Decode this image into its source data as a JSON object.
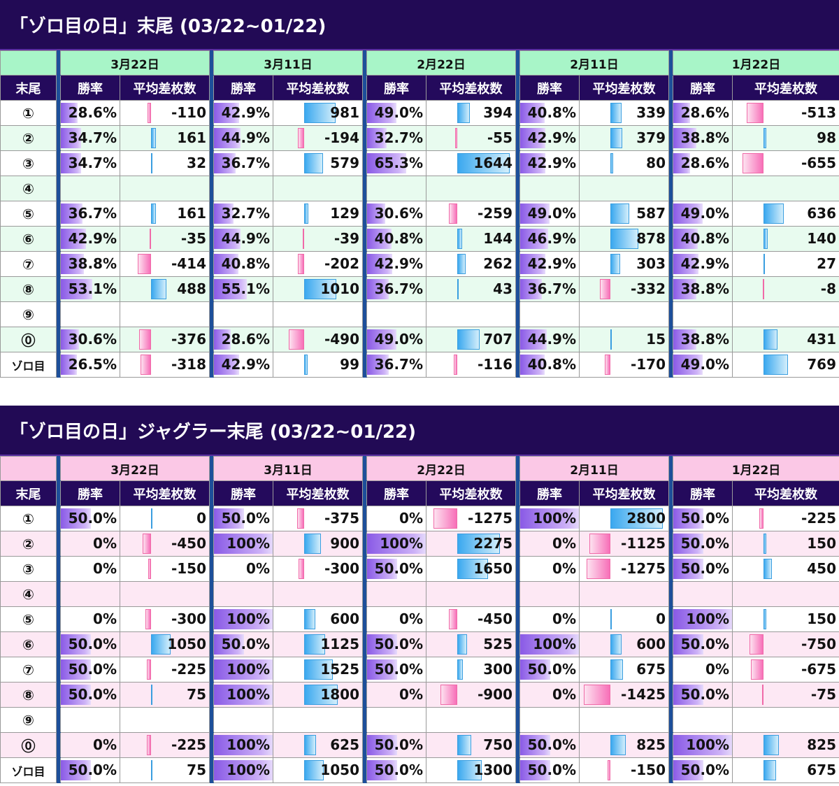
{
  "dates": [
    "3月22日",
    "3月11日",
    "2月22日",
    "2月11日",
    "1月22日"
  ],
  "col_labels": {
    "row_header": "末尾",
    "rate": "勝率",
    "avg": "平均差枚数"
  },
  "colors": {
    "s1_date_bg": "#a8f5c8",
    "s1_alt": "#e8fbef",
    "s2_date_bg": "#fbc8e6",
    "s2_alt": "#fde8f4"
  },
  "sections": [
    {
      "title": "「ゾロ目の日」末尾 (03/22~01/22)",
      "rows": [
        {
          "label": "①",
          "cells": [
            [
              "28.6%",
              "-110"
            ],
            [
              "42.9%",
              "981"
            ],
            [
              "49.0%",
              "394"
            ],
            [
              "40.8%",
              "339"
            ],
            [
              "28.6%",
              "-513"
            ]
          ]
        },
        {
          "label": "②",
          "cells": [
            [
              "34.7%",
              "161"
            ],
            [
              "44.9%",
              "-194"
            ],
            [
              "32.7%",
              "-55"
            ],
            [
              "42.9%",
              "379"
            ],
            [
              "38.8%",
              "98"
            ]
          ]
        },
        {
          "label": "③",
          "cells": [
            [
              "34.7%",
              "32"
            ],
            [
              "36.7%",
              "579"
            ],
            [
              "65.3%",
              "1644"
            ],
            [
              "42.9%",
              "80"
            ],
            [
              "28.6%",
              "-655"
            ]
          ]
        },
        {
          "label": "④",
          "cells": [
            [
              "",
              ""
            ],
            [
              "",
              ""
            ],
            [
              "",
              ""
            ],
            [
              "",
              ""
            ],
            [
              "",
              ""
            ]
          ]
        },
        {
          "label": "⑤",
          "cells": [
            [
              "36.7%",
              "161"
            ],
            [
              "32.7%",
              "129"
            ],
            [
              "30.6%",
              "-259"
            ],
            [
              "49.0%",
              "587"
            ],
            [
              "49.0%",
              "636"
            ]
          ]
        },
        {
          "label": "⑥",
          "cells": [
            [
              "42.9%",
              "-35"
            ],
            [
              "44.9%",
              "-39"
            ],
            [
              "40.8%",
              "144"
            ],
            [
              "46.9%",
              "878"
            ],
            [
              "40.8%",
              "140"
            ]
          ]
        },
        {
          "label": "⑦",
          "cells": [
            [
              "38.8%",
              "-414"
            ],
            [
              "40.8%",
              "-202"
            ],
            [
              "42.9%",
              "262"
            ],
            [
              "42.9%",
              "303"
            ],
            [
              "42.9%",
              "27"
            ]
          ]
        },
        {
          "label": "⑧",
          "cells": [
            [
              "53.1%",
              "488"
            ],
            [
              "55.1%",
              "1010"
            ],
            [
              "36.7%",
              "43"
            ],
            [
              "36.7%",
              "-332"
            ],
            [
              "38.8%",
              "-8"
            ]
          ]
        },
        {
          "label": "⑨",
          "cells": [
            [
              "",
              ""
            ],
            [
              "",
              ""
            ],
            [
              "",
              ""
            ],
            [
              "",
              ""
            ],
            [
              "",
              ""
            ]
          ]
        },
        {
          "label": "⓪",
          "cells": [
            [
              "30.6%",
              "-376"
            ],
            [
              "28.6%",
              "-490"
            ],
            [
              "49.0%",
              "707"
            ],
            [
              "44.9%",
              "15"
            ],
            [
              "38.8%",
              "431"
            ]
          ]
        },
        {
          "label": "ゾロ目",
          "cells": [
            [
              "26.5%",
              "-318"
            ],
            [
              "42.9%",
              "99"
            ],
            [
              "36.7%",
              "-116"
            ],
            [
              "40.8%",
              "-170"
            ],
            [
              "49.0%",
              "769"
            ]
          ]
        }
      ]
    },
    {
      "title": "「ゾロ目の日」ジャグラー末尾 (03/22~01/22)",
      "rows": [
        {
          "label": "①",
          "cells": [
            [
              "50.0%",
              "0"
            ],
            [
              "50.0%",
              "-375"
            ],
            [
              "0%",
              "-1275"
            ],
            [
              "100%",
              "2800"
            ],
            [
              "50.0%",
              "-225"
            ]
          ]
        },
        {
          "label": "②",
          "cells": [
            [
              "0%",
              "-450"
            ],
            [
              "100%",
              "900"
            ],
            [
              "100%",
              "2275"
            ],
            [
              "0%",
              "-1125"
            ],
            [
              "50.0%",
              "150"
            ]
          ]
        },
        {
          "label": "③",
          "cells": [
            [
              "0%",
              "-150"
            ],
            [
              "0%",
              "-300"
            ],
            [
              "50.0%",
              "1650"
            ],
            [
              "0%",
              "-1275"
            ],
            [
              "50.0%",
              "450"
            ]
          ]
        },
        {
          "label": "④",
          "cells": [
            [
              "",
              ""
            ],
            [
              "",
              ""
            ],
            [
              "",
              ""
            ],
            [
              "",
              ""
            ],
            [
              "",
              ""
            ]
          ]
        },
        {
          "label": "⑤",
          "cells": [
            [
              "0%",
              "-300"
            ],
            [
              "100%",
              "600"
            ],
            [
              "0%",
              "-450"
            ],
            [
              "0%",
              "0"
            ],
            [
              "100%",
              "150"
            ]
          ]
        },
        {
          "label": "⑥",
          "cells": [
            [
              "50.0%",
              "1050"
            ],
            [
              "50.0%",
              "1125"
            ],
            [
              "50.0%",
              "525"
            ],
            [
              "100%",
              "600"
            ],
            [
              "50.0%",
              "-750"
            ]
          ]
        },
        {
          "label": "⑦",
          "cells": [
            [
              "50.0%",
              "-225"
            ],
            [
              "100%",
              "1525"
            ],
            [
              "50.0%",
              "300"
            ],
            [
              "50.0%",
              "675"
            ],
            [
              "0%",
              "-675"
            ]
          ]
        },
        {
          "label": "⑧",
          "cells": [
            [
              "50.0%",
              "75"
            ],
            [
              "100%",
              "1800"
            ],
            [
              "0%",
              "-900"
            ],
            [
              "0%",
              "-1425"
            ],
            [
              "50.0%",
              "-75"
            ]
          ]
        },
        {
          "label": "⑨",
          "cells": [
            [
              "",
              ""
            ],
            [
              "",
              ""
            ],
            [
              "",
              ""
            ],
            [
              "",
              ""
            ],
            [
              "",
              ""
            ]
          ]
        },
        {
          "label": "⓪",
          "cells": [
            [
              "0%",
              "-225"
            ],
            [
              "100%",
              "625"
            ],
            [
              "50.0%",
              "750"
            ],
            [
              "50.0%",
              "825"
            ],
            [
              "100%",
              "825"
            ]
          ]
        },
        {
          "label": "ゾロ目",
          "cells": [
            [
              "50.0%",
              "75"
            ],
            [
              "100%",
              "1050"
            ],
            [
              "50.0%",
              "1300"
            ],
            [
              "50.0%",
              "-150"
            ],
            [
              "50.0%",
              "675"
            ]
          ]
        }
      ]
    }
  ]
}
